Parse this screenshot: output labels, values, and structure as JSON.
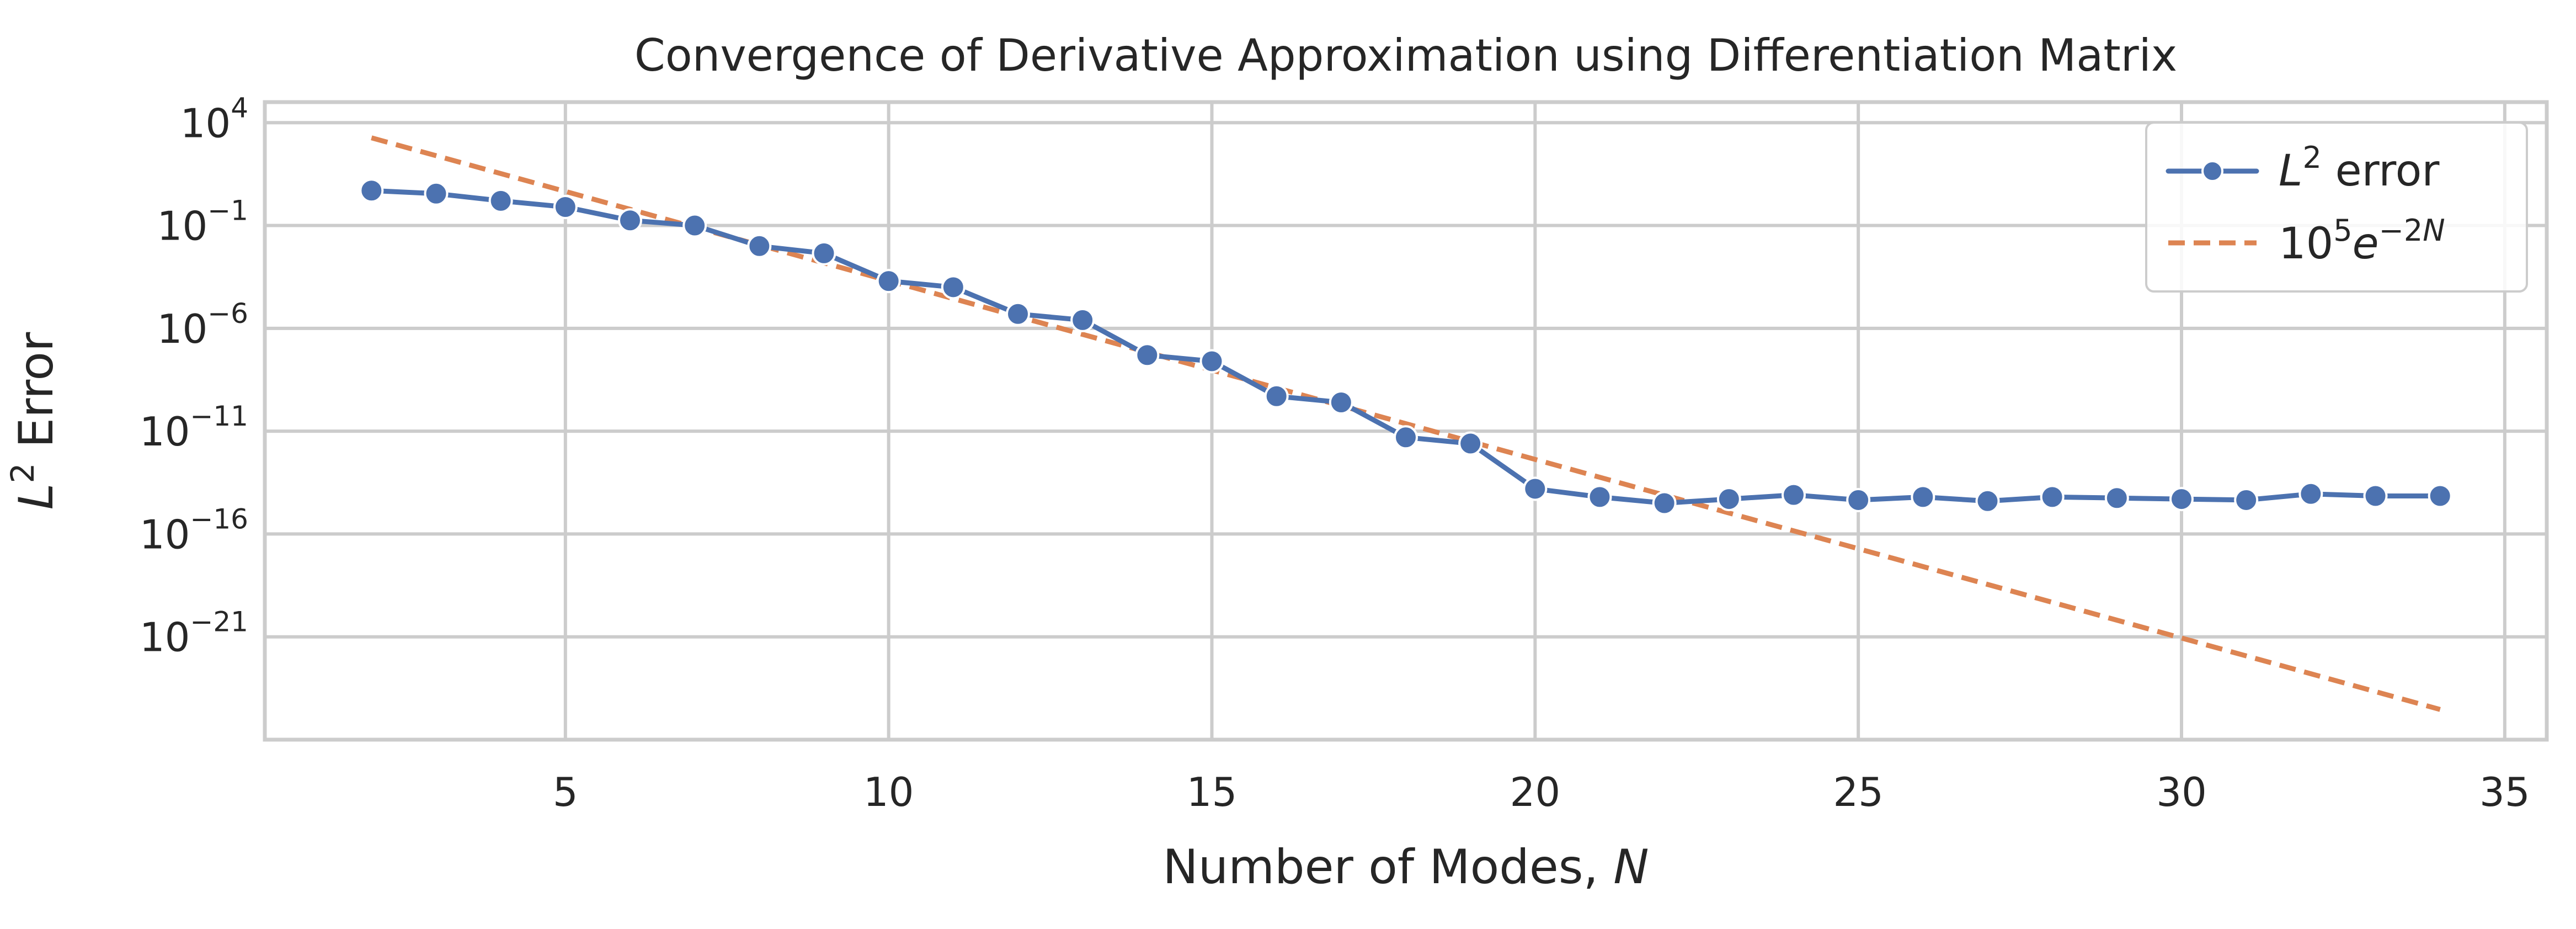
{
  "chart_data": {
    "type": "line",
    "title": "Convergence of Derivative Approximation using Differentiation Matrix",
    "xlabel": {
      "prefix": "Number of Modes, ",
      "var": "N"
    },
    "ylabel": {
      "var": "L",
      "sup": "2",
      "suffix": " Error"
    },
    "xlim": [
      0.35,
      35.65
    ],
    "ylim_log10": [
      -26,
      5
    ],
    "y_scale": "log",
    "grid": true,
    "legend_position": "top-right",
    "x_ticks": [
      5,
      10,
      15,
      20,
      25,
      30,
      35
    ],
    "y_ticks": [
      {
        "base": "10",
        "exp": "4"
      },
      {
        "base": "10",
        "exp": "−1"
      },
      {
        "base": "10",
        "exp": "−6"
      },
      {
        "base": "10",
        "exp": "−11"
      },
      {
        "base": "10",
        "exp": "−16"
      },
      {
        "base": "10",
        "exp": "−21"
      }
    ],
    "series": [
      {
        "name": {
          "var": "L",
          "sup": "2",
          "suffix": " error"
        },
        "style": "line-marker",
        "color": "#4C72B0",
        "x": [
          2,
          3,
          4,
          5,
          6,
          7,
          8,
          9,
          10,
          11,
          12,
          13,
          14,
          15,
          16,
          17,
          18,
          19,
          20,
          21,
          22,
          23,
          24,
          25,
          26,
          27,
          28,
          29,
          30,
          31,
          32,
          33,
          34
        ],
        "y_log10": [
          0.7,
          0.55,
          0.2,
          -0.1,
          -0.75,
          -1.0,
          -2.0,
          -2.35,
          -3.7,
          -4.0,
          -5.3,
          -5.6,
          -7.3,
          -7.6,
          -9.3,
          -9.6,
          -11.3,
          -11.6,
          -13.8,
          -14.2,
          -14.5,
          -14.3,
          -14.1,
          -14.35,
          -14.2,
          -14.4,
          -14.2,
          -14.25,
          -14.3,
          -14.35,
          -14.05,
          -14.15,
          -14.15
        ]
      },
      {
        "name": {
          "base": "10",
          "sup1": "5",
          "mid": "e",
          "sup2": "−2",
          "var": "N"
        },
        "style": "dashed",
        "color": "#DD8452",
        "formula_coeff": 100000,
        "formula_rate": -2,
        "x_range": [
          2,
          34
        ]
      }
    ]
  }
}
